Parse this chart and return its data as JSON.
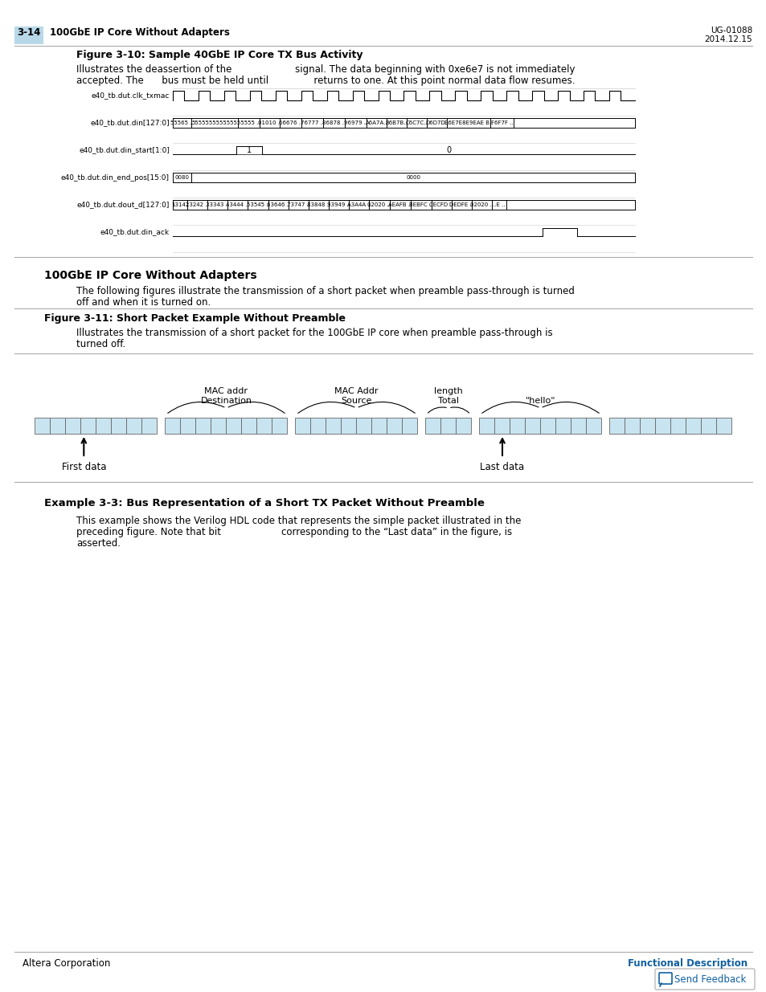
{
  "page_bg": "#ffffff",
  "light_blue_tab": "#b8d8e8",
  "header_num": "3-14",
  "header_title": "100GbE IP Core Without Adapters",
  "header_right_line1": "UG-01088",
  "header_right_line2": "2014.12.15",
  "fig310_title": "Figure 3-10: Sample 40GbE IP Core TX Bus Activity",
  "fig310_cap1": "Illustrates the deassertion of the                     signal. The data beginning with 0xe6e7 is not immediately",
  "fig310_cap2": "accepted. The      bus must be held until               returns to one. At this point normal data flow resumes.",
  "waveform_signals": [
    "e40_tb.dut.clk_txmac",
    "e40_tb.dut.din[127:0]",
    "e40_tb.dut.din_start[1:0]",
    "e40_tb.dut.din_end_pos[15:0]",
    "e40_tb.dut.dout_d[127:0]",
    "e40_tb.dut.din_ack"
  ],
  "section_title": "100GbE IP Core Without Adapters",
  "section_para1": "The following figures illustrate the transmission of a short packet when preamble pass-through is turned",
  "section_para2": "off and when it is turned on.",
  "fig311_title": "Figure 3-11: Short Packet Example Without Preamble",
  "fig311_cap1": "Illustrates the transmission of a short packet for the 100GbE IP core when preamble pass-through is",
  "fig311_cap2": "turned off.",
  "pkt_labels": [
    {
      "lines": [
        "Destination",
        "MAC addr"
      ],
      "group_idx": 1
    },
    {
      "lines": [
        "Source",
        "MAC Addr"
      ],
      "group_idx": 2
    },
    {
      "lines": [
        "Total",
        "length"
      ],
      "group_idx": 3
    },
    {
      "lines": [
        "\"hello\""
      ],
      "group_idx": 4
    }
  ],
  "first_data_label": "First data",
  "last_data_label": "Last data",
  "example_title": "Example 3-3: Bus Representation of a Short TX Packet Without Preamble",
  "example_para1": "This example shows the Verilog HDL code that represents the simple packet illustrated in the",
  "example_para2": "preceding figure. Note that bit                    corresponding to the “Last data” in the figure, is",
  "example_para3": "asserted.",
  "footer_left": "Altera Corporation",
  "footer_right": "Functional Description",
  "footer_link": "Send Feedback",
  "light_blue": "#c8e4f0",
  "separator_color": "#bbbbbb",
  "link_color": "#1060a0"
}
